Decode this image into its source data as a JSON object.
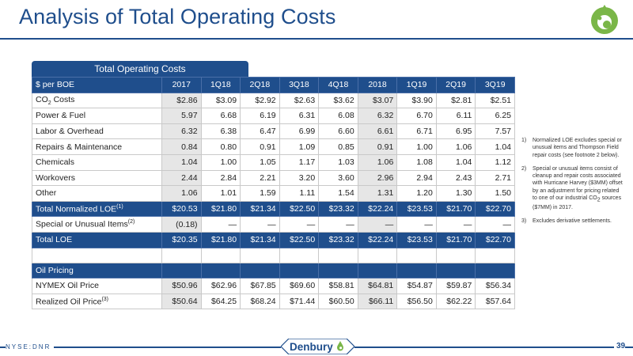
{
  "title": "Analysis of Total Operating Costs",
  "table_tab": "Total Operating Costs",
  "columns": [
    "$ per BOE",
    "2017",
    "1Q18",
    "2Q18",
    "3Q18",
    "4Q18",
    "2018",
    "1Q19",
    "2Q19",
    "3Q19"
  ],
  "rows": [
    {
      "label": "CO",
      "label_sub": "2",
      "label_after": " Costs",
      "values": [
        "$2.86",
        "$3.09",
        "$2.92",
        "$2.63",
        "$3.62",
        "$3.07",
        "$3.90",
        "$2.81",
        "$2.51"
      ]
    },
    {
      "label": "Power & Fuel",
      "values": [
        "5.97",
        "6.68",
        "6.19",
        "6.31",
        "6.08",
        "6.32",
        "6.70",
        "6.11",
        "6.25"
      ]
    },
    {
      "label": "Labor & Overhead",
      "values": [
        "6.32",
        "6.38",
        "6.47",
        "6.99",
        "6.60",
        "6.61",
        "6.71",
        "6.95",
        "7.57"
      ]
    },
    {
      "label": "Repairs & Maintenance",
      "values": [
        "0.84",
        "0.80",
        "0.91",
        "1.09",
        "0.85",
        "0.91",
        "1.00",
        "1.06",
        "1.04"
      ]
    },
    {
      "label": "Chemicals",
      "values": [
        "1.04",
        "1.00",
        "1.05",
        "1.17",
        "1.03",
        "1.06",
        "1.08",
        "1.04",
        "1.12"
      ]
    },
    {
      "label": "Workovers",
      "values": [
        "2.44",
        "2.84",
        "2.21",
        "3.20",
        "3.60",
        "2.96",
        "2.94",
        "2.43",
        "2.71"
      ]
    },
    {
      "label": "Other",
      "values": [
        "1.06",
        "1.01",
        "1.59",
        "1.11",
        "1.54",
        "1.31",
        "1.20",
        "1.30",
        "1.50"
      ]
    }
  ],
  "total_normalized": {
    "label": "Total Normalized LOE",
    "sup": "(1)",
    "values": [
      "$20.53",
      "$21.80",
      "$21.34",
      "$22.50",
      "$23.32",
      "$22.24",
      "$23.53",
      "$21.70",
      "$22.70"
    ]
  },
  "special": {
    "label": "Special or Unusual Items",
    "sup": "(2)",
    "values": [
      "(0.18)",
      "—",
      "—",
      "—",
      "—",
      "—",
      "—",
      "—",
      "—"
    ]
  },
  "total_loe": {
    "label": "Total LOE",
    "values": [
      "$20.35",
      "$21.80",
      "$21.34",
      "$22.50",
      "$23.32",
      "$22.24",
      "$23.53",
      "$21.70",
      "$22.70"
    ]
  },
  "oil_section": "Oil Pricing",
  "nymex": {
    "label": "NYMEX Oil Price",
    "values": [
      "$50.96",
      "$62.96",
      "$67.85",
      "$69.60",
      "$58.81",
      "$64.81",
      "$54.87",
      "$59.87",
      "$56.34"
    ]
  },
  "realized": {
    "label": "Realized Oil Price",
    "sup": "(3)",
    "values": [
      "$50.64",
      "$64.25",
      "$68.24",
      "$71.44",
      "$60.50",
      "$66.11",
      "$56.50",
      "$62.22",
      "$57.64"
    ]
  },
  "notes": [
    {
      "num": "1)",
      "text": "Normalized LOE excludes special or unusual items and Thompson Field repair costs (see footnote 2 below)."
    },
    {
      "num": "2)",
      "text_before": "Special or unusual items consist of cleanup and repair costs associated with Hurricane Harvey ($3MM) offset by an adjustment for pricing related to one of our industrial CO",
      "text_sub": "2",
      "text_after": " sources ($7MM) in 2017."
    },
    {
      "num": "3)",
      "text": "Excludes derivative settlements."
    }
  ],
  "footer": {
    "ticker": "NYSE:DNR",
    "brand": "Denbury",
    "page": "39"
  },
  "colors": {
    "primary": "#1f4e8c",
    "accent_green": "#7ab648",
    "shade": "#e6e6e6"
  }
}
